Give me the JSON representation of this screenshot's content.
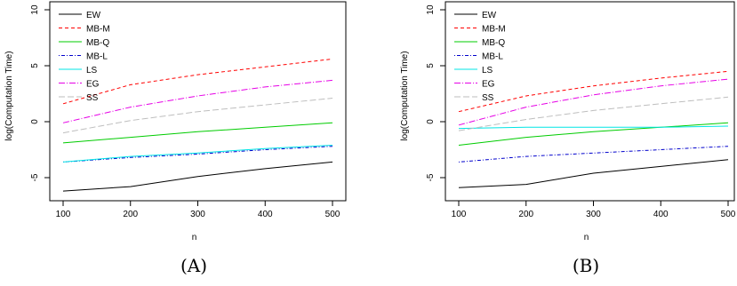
{
  "chart_data": [
    {
      "type": "line",
      "panel_label": "(A)",
      "xlabel": "n",
      "ylabel": "log(Computation Time)",
      "x": [
        100,
        200,
        300,
        400,
        500
      ],
      "xticks": [
        "100",
        "200",
        "300",
        "400",
        "500"
      ],
      "yticks": [
        "-5",
        "0",
        "5",
        "10"
      ],
      "xlim": [
        100,
        500
      ],
      "ylim": [
        -6.2,
        10
      ],
      "legend_position": "top-left",
      "series": [
        {
          "name": "EW",
          "color": "#000000",
          "dash": "solid",
          "values": [
            -6.2,
            -5.8,
            -4.9,
            -4.2,
            -3.6
          ]
        },
        {
          "name": "MB-M",
          "color": "#ff0000",
          "dash": "dashed",
          "values": [
            1.6,
            3.3,
            4.2,
            4.9,
            5.6
          ]
        },
        {
          "name": "MB-Q",
          "color": "#00cc00",
          "dash": "solid",
          "values": [
            -1.9,
            -1.4,
            -0.9,
            -0.5,
            -0.1
          ]
        },
        {
          "name": "MB-L",
          "color": "#0000cc",
          "dash": "dotdash",
          "values": [
            -3.6,
            -3.2,
            -2.9,
            -2.5,
            -2.2
          ]
        },
        {
          "name": "LS",
          "color": "#00e5e5",
          "dash": "solid",
          "values": [
            -3.6,
            -3.1,
            -2.8,
            -2.4,
            -2.1
          ]
        },
        {
          "name": "EG",
          "color": "#e600e6",
          "dash": "longdash-dot",
          "values": [
            -0.1,
            1.3,
            2.3,
            3.1,
            3.7
          ]
        },
        {
          "name": "SS",
          "color": "#bebebe",
          "dash": "longdash",
          "values": [
            -1.0,
            0.1,
            0.9,
            1.5,
            2.1
          ]
        }
      ]
    },
    {
      "type": "line",
      "panel_label": "(B)",
      "xlabel": "n",
      "ylabel": "log(Computation Time)",
      "x": [
        100,
        200,
        300,
        400,
        500
      ],
      "xticks": [
        "100",
        "200",
        "300",
        "400",
        "500"
      ],
      "yticks": [
        "-5",
        "0",
        "5",
        "10"
      ],
      "xlim": [
        100,
        500
      ],
      "ylim": [
        -6.2,
        10
      ],
      "legend_position": "top-left",
      "series": [
        {
          "name": "EW",
          "color": "#000000",
          "dash": "solid",
          "values": [
            -5.9,
            -5.6,
            -4.6,
            -4.0,
            -3.4
          ]
        },
        {
          "name": "MB-M",
          "color": "#ff0000",
          "dash": "dashed",
          "values": [
            0.9,
            2.3,
            3.2,
            3.9,
            4.5
          ]
        },
        {
          "name": "MB-Q",
          "color": "#00cc00",
          "dash": "solid",
          "values": [
            -2.1,
            -1.4,
            -0.9,
            -0.5,
            -0.1
          ]
        },
        {
          "name": "MB-L",
          "color": "#0000cc",
          "dash": "dotdash",
          "values": [
            -3.6,
            -3.1,
            -2.8,
            -2.5,
            -2.2
          ]
        },
        {
          "name": "LS",
          "color": "#00e5e5",
          "dash": "solid",
          "values": [
            -0.6,
            -0.5,
            -0.5,
            -0.5,
            -0.4
          ]
        },
        {
          "name": "EG",
          "color": "#e600e6",
          "dash": "longdash-dot",
          "values": [
            -0.3,
            1.3,
            2.4,
            3.2,
            3.8
          ]
        },
        {
          "name": "SS",
          "color": "#bebebe",
          "dash": "longdash",
          "values": [
            -0.8,
            0.2,
            1.0,
            1.6,
            2.2
          ]
        }
      ]
    }
  ]
}
